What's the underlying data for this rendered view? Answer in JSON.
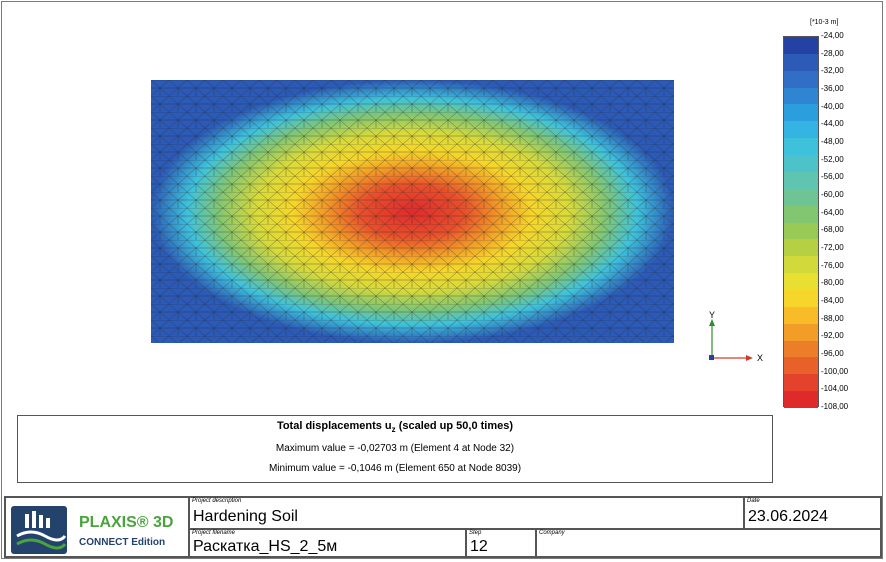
{
  "plot": {
    "title": "Total displacements u",
    "subscript": "z",
    "title_suffix": " (scaled up 50,0 times)"
  },
  "info": {
    "maximum": "Maximum value = -0,02703 m (Element 4 at Node 32)",
    "minimum": "Minimum value = -0,1046 m (Element 650 at Node 8039)"
  },
  "axes": {
    "y_label": "Y",
    "x_label": "X"
  },
  "legend": {
    "unit": "[*10-3 m]",
    "ticks": [
      "-24,00",
      "-28,00",
      "-32,00",
      "-36,00",
      "-40,00",
      "-44,00",
      "-48,00",
      "-52,00",
      "-56,00",
      "-60,00",
      "-64,00",
      "-68,00",
      "-72,00",
      "-76,00",
      "-80,00",
      "-84,00",
      "-88,00",
      "-92,00",
      "-96,00",
      "-100,00",
      "-104,00",
      "-108,00"
    ],
    "colors": [
      "#2541a4",
      "#2b5ab7",
      "#306fc5",
      "#2f85d2",
      "#2b9edf",
      "#33b4e3",
      "#3ec2dc",
      "#4dc3c9",
      "#5fc4b0",
      "#6fc493",
      "#82c672",
      "#98ca55",
      "#b6d043",
      "#d2d93a",
      "#e8df30",
      "#f6d62a",
      "#f7bc28",
      "#f29d27",
      "#ec7e29",
      "#e8602a",
      "#e4422c",
      "#df2a2c"
    ]
  },
  "title_block": {
    "logo_name": "PLAXIS® 3D",
    "logo_sub": "CONNECT Edition",
    "project_description_caption": "Project description",
    "project_description": "Hardening Soil",
    "date_caption": "Date",
    "date": "23.06.2024",
    "project_filename_caption": "Project filename",
    "project_filename": "Раскатка_HS_2_5м",
    "step_caption": "Step",
    "step": "12",
    "company_caption": "Company",
    "company": ""
  }
}
